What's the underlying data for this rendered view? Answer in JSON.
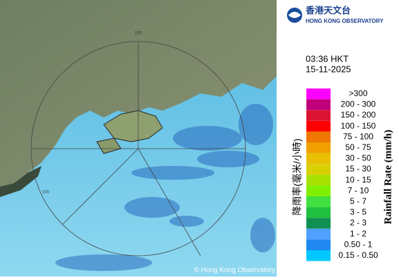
{
  "logo": {
    "chinese": "香港天文台",
    "english": "HONG KONG OBSERVATORY"
  },
  "time": "03:36 HKT",
  "date": "15-11-2025",
  "ring_labels": [
    "100",
    "100"
  ],
  "copyright": "© Hong Kong Observatory",
  "legend": {
    "title_zh": "降雨率(毫米/小時)",
    "title_en": "Rainfall Rate (mm/h)",
    "items": [
      {
        "label": ">300",
        "color": "#ff00ff"
      },
      {
        "label": "200 - 300",
        "color": "#c0007a"
      },
      {
        "label": "150 - 200",
        "color": "#dc1432"
      },
      {
        "label": "100 - 150",
        "color": "#ff0000"
      },
      {
        "label": "75 - 100",
        "color": "#f07800"
      },
      {
        "label": "50 - 75",
        "color": "#f0a000"
      },
      {
        "label": "30 - 50",
        "color": "#e8c000"
      },
      {
        "label": "15 - 30",
        "color": "#d8d000"
      },
      {
        "label": "10 - 15",
        "color": "#a8e000"
      },
      {
        "label": "7 - 10",
        "color": "#80f000"
      },
      {
        "label": "5 - 7",
        "color": "#40e040"
      },
      {
        "label": "3 - 5",
        "color": "#20c040"
      },
      {
        "label": "2 - 3",
        "color": "#109050"
      },
      {
        "label": "1 - 2",
        "color": "#50a0ff"
      },
      {
        "label": "0.50 - 1",
        "color": "#2088f0"
      },
      {
        "label": "0.15 - 0.50",
        "color": "#00c8ff"
      }
    ]
  }
}
